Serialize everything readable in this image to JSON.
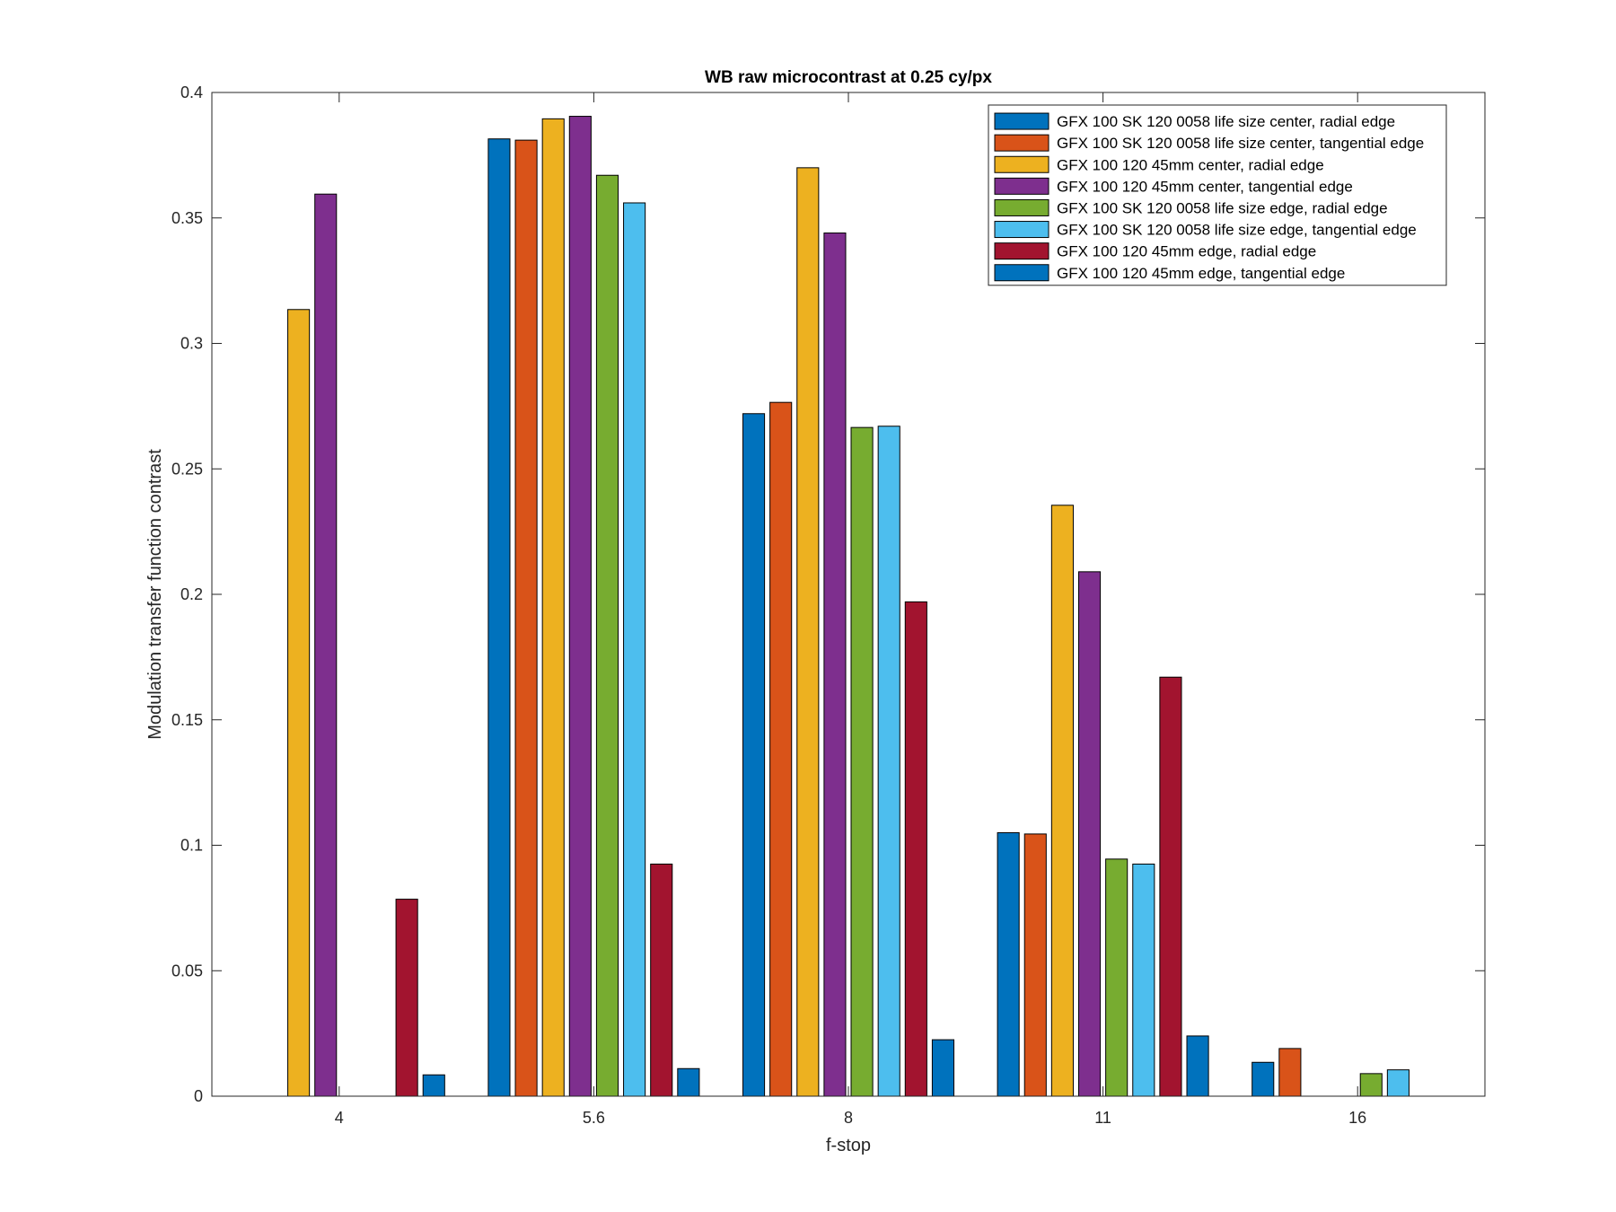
{
  "chart_data": {
    "type": "bar",
    "title": "WB raw  microcontrast at 0.25 cy/px",
    "xlabel": "f-stop",
    "ylabel": "Modulation transfer function contrast",
    "categories": [
      "4",
      "5.6",
      "8",
      "11",
      "16"
    ],
    "ylim": [
      0,
      0.4
    ],
    "yticks": [
      "0",
      "0.05",
      "0.1",
      "0.15",
      "0.2",
      "0.25",
      "0.3",
      "0.35",
      "0.4"
    ],
    "ytick_values": [
      0,
      0.05,
      0.1,
      0.15,
      0.2,
      0.25,
      0.3,
      0.35,
      0.4
    ],
    "grid": false,
    "legend_position": "top-right",
    "series": [
      {
        "name": "GFX 100 SK 120 0058 life size center, radial edge",
        "color": "#0072BD",
        "values": [
          null,
          0.3815,
          0.272,
          0.105,
          0.0135
        ]
      },
      {
        "name": "GFX 100 SK 120 0058 life size center, tangential edge",
        "color": "#D95319",
        "values": [
          null,
          0.381,
          0.2765,
          0.1045,
          0.019
        ]
      },
      {
        "name": "GFX 100 120 45mm center, radial edge",
        "color": "#EDB120",
        "values": [
          0.3135,
          0.3895,
          0.37,
          0.2355,
          null
        ]
      },
      {
        "name": "GFX 100 120 45mm center, tangential edge",
        "color": "#7E2F8E",
        "values": [
          0.3595,
          0.3905,
          0.344,
          0.209,
          null
        ]
      },
      {
        "name": "GFX 100 SK 120 0058 life size edge, radial edge",
        "color": "#77AC30",
        "values": [
          null,
          0.367,
          0.2665,
          0.0945,
          0.009
        ]
      },
      {
        "name": "GFX 100 SK 120 0058 life size edge, tangential edge",
        "color": "#4DBEEE",
        "values": [
          null,
          0.356,
          0.267,
          0.0925,
          0.0105
        ]
      },
      {
        "name": "GFX 100 120 45mm edge, radial edge",
        "color": "#A2142F",
        "values": [
          0.0785,
          0.0925,
          0.197,
          0.167,
          null
        ]
      },
      {
        "name": "GFX 100 120 45mm edge, tangential edge",
        "color": "#0072BD",
        "values": [
          0.0085,
          0.011,
          0.0225,
          0.024,
          null
        ]
      }
    ]
  }
}
